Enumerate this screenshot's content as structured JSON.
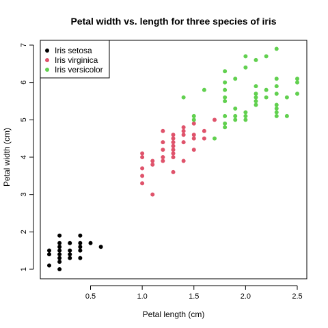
{
  "chart_data": {
    "type": "scatter",
    "title": "Petal width vs. length for three species of iris",
    "xlabel": "Petal length (cm)",
    "ylabel": "Petal width (cm)",
    "xlim": [
      0.05,
      2.6
    ],
    "ylim": [
      0.8,
      7.1
    ],
    "xticks": [
      0.5,
      1.0,
      1.5,
      2.0,
      2.5
    ],
    "xtick_labels": [
      "0.5",
      "1.0",
      "1.5",
      "2.0",
      "2.5"
    ],
    "yticks": [
      1,
      2,
      3,
      4,
      5,
      6,
      7
    ],
    "ytick_labels": [
      "1",
      "2",
      "3",
      "4",
      "5",
      "6",
      "7"
    ],
    "grid": false,
    "legend_position": "top-left",
    "series": [
      {
        "name": "Iris setosa",
        "color": "#000000",
        "points": [
          [
            0.1,
            1.1
          ],
          [
            0.1,
            1.4
          ],
          [
            0.1,
            1.5
          ],
          [
            0.2,
            1.0
          ],
          [
            0.2,
            1.2
          ],
          [
            0.2,
            1.3
          ],
          [
            0.2,
            1.4
          ],
          [
            0.2,
            1.5
          ],
          [
            0.2,
            1.6
          ],
          [
            0.2,
            1.7
          ],
          [
            0.2,
            1.9
          ],
          [
            0.3,
            1.3
          ],
          [
            0.3,
            1.4
          ],
          [
            0.3,
            1.5
          ],
          [
            0.3,
            1.7
          ],
          [
            0.4,
            1.3
          ],
          [
            0.4,
            1.5
          ],
          [
            0.4,
            1.6
          ],
          [
            0.4,
            1.7
          ],
          [
            0.4,
            1.9
          ],
          [
            0.5,
            1.7
          ],
          [
            0.6,
            1.6
          ]
        ]
      },
      {
        "name": "Iris virginica",
        "color": "#DF536B",
        "points": [
          [
            1.0,
            3.3
          ],
          [
            1.0,
            3.5
          ],
          [
            1.0,
            3.7
          ],
          [
            1.0,
            4.0
          ],
          [
            1.0,
            4.1
          ],
          [
            1.1,
            3.0
          ],
          [
            1.1,
            3.8
          ],
          [
            1.1,
            3.9
          ],
          [
            1.2,
            3.9
          ],
          [
            1.2,
            4.0
          ],
          [
            1.2,
            4.2
          ],
          [
            1.2,
            4.4
          ],
          [
            1.2,
            4.7
          ],
          [
            1.3,
            3.6
          ],
          [
            1.3,
            4.0
          ],
          [
            1.3,
            4.1
          ],
          [
            1.3,
            4.2
          ],
          [
            1.3,
            4.3
          ],
          [
            1.3,
            4.4
          ],
          [
            1.3,
            4.5
          ],
          [
            1.3,
            4.6
          ],
          [
            1.4,
            3.9
          ],
          [
            1.4,
            4.4
          ],
          [
            1.4,
            4.6
          ],
          [
            1.4,
            4.7
          ],
          [
            1.4,
            4.8
          ],
          [
            1.5,
            4.2
          ],
          [
            1.5,
            4.5
          ],
          [
            1.5,
            4.6
          ],
          [
            1.5,
            4.9
          ],
          [
            1.6,
            4.5
          ],
          [
            1.6,
            4.7
          ],
          [
            1.7,
            5.0
          ]
        ]
      },
      {
        "name": "Iris versicolor",
        "color": "#61D04F",
        "points": [
          [
            1.4,
            5.6
          ],
          [
            1.5,
            5.0
          ],
          [
            1.5,
            5.1
          ],
          [
            1.6,
            5.8
          ],
          [
            1.7,
            4.5
          ],
          [
            1.8,
            4.8
          ],
          [
            1.8,
            4.9
          ],
          [
            1.8,
            5.1
          ],
          [
            1.8,
            5.5
          ],
          [
            1.8,
            5.6
          ],
          [
            1.8,
            5.8
          ],
          [
            1.8,
            6.0
          ],
          [
            1.8,
            6.3
          ],
          [
            1.9,
            5.0
          ],
          [
            1.9,
            5.1
          ],
          [
            1.9,
            5.3
          ],
          [
            1.9,
            6.1
          ],
          [
            2.0,
            5.0
          ],
          [
            2.0,
            5.1
          ],
          [
            2.0,
            5.2
          ],
          [
            2.0,
            6.4
          ],
          [
            2.0,
            6.7
          ],
          [
            2.1,
            5.4
          ],
          [
            2.1,
            5.5
          ],
          [
            2.1,
            5.6
          ],
          [
            2.1,
            5.7
          ],
          [
            2.1,
            5.9
          ],
          [
            2.1,
            6.6
          ],
          [
            2.2,
            5.6
          ],
          [
            2.2,
            5.8
          ],
          [
            2.2,
            6.7
          ],
          [
            2.3,
            5.1
          ],
          [
            2.3,
            5.2
          ],
          [
            2.3,
            5.3
          ],
          [
            2.3,
            5.4
          ],
          [
            2.3,
            5.7
          ],
          [
            2.3,
            5.9
          ],
          [
            2.3,
            6.1
          ],
          [
            2.3,
            6.9
          ],
          [
            2.4,
            5.1
          ],
          [
            2.4,
            5.6
          ],
          [
            2.5,
            5.7
          ],
          [
            2.5,
            6.0
          ],
          [
            2.5,
            6.1
          ]
        ]
      }
    ]
  }
}
